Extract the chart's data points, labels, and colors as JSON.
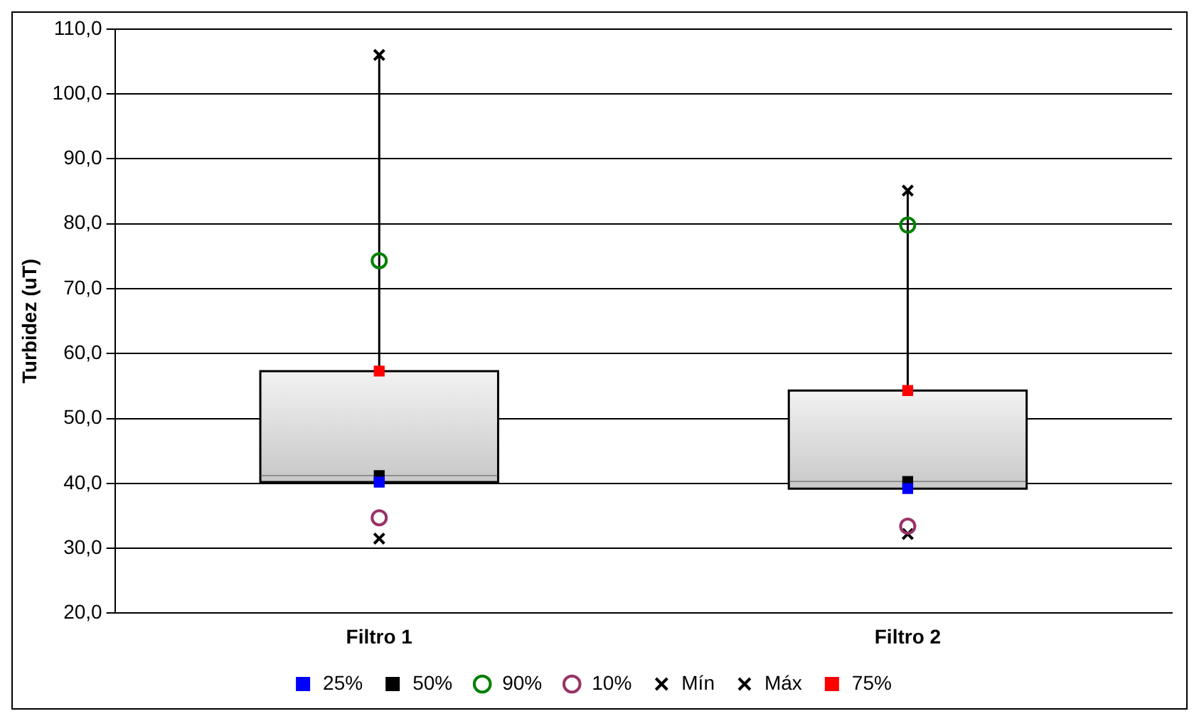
{
  "chart_data": {
    "type": "box",
    "ylabel": "Turbidez (uT)",
    "categories": [
      "Filtro 1",
      "Filtro 2"
    ],
    "boxes": [
      {
        "q1": 40.2,
        "median": 41.2,
        "q3": 57.3,
        "high": 106.0
      },
      {
        "q1": 39.2,
        "median": 40.3,
        "q3": 54.3,
        "high": 85.1
      }
    ],
    "series": [
      {
        "name": "25%",
        "type": "scatter",
        "color": "#0000ff",
        "marker": "square",
        "values": [
          40.2,
          39.2
        ]
      },
      {
        "name": "50%",
        "type": "scatter",
        "color": "#000000",
        "marker": "square",
        "values": [
          41.2,
          40.3
        ]
      },
      {
        "name": "90%",
        "type": "scatter",
        "color": "#008000",
        "marker": "circle",
        "values": [
          74.3,
          79.8
        ]
      },
      {
        "name": "10%",
        "type": "scatter",
        "color": "#993366",
        "marker": "circle",
        "values": [
          34.7,
          33.4
        ]
      },
      {
        "name": "Mín",
        "type": "scatter",
        "color": "#000000",
        "marker": "cross",
        "values": [
          31.5,
          32.2
        ]
      },
      {
        "name": "Máx",
        "type": "scatter",
        "color": "#000000",
        "marker": "cross",
        "values": [
          106.0,
          85.1
        ]
      },
      {
        "name": "75%",
        "type": "scatter",
        "color": "#ff0000",
        "marker": "square",
        "values": [
          57.3,
          54.3
        ]
      }
    ],
    "ylim": [
      20,
      110
    ],
    "yticks": [
      {
        "value": 20,
        "label": "20,0"
      },
      {
        "value": 30,
        "label": "30,0"
      },
      {
        "value": 40,
        "label": "40,0"
      },
      {
        "value": 50,
        "label": "50,0"
      },
      {
        "value": 60,
        "label": "60,0"
      },
      {
        "value": 70,
        "label": "70,0"
      },
      {
        "value": 80,
        "label": "80,0"
      },
      {
        "value": 90,
        "label": "90,0"
      },
      {
        "value": 100,
        "label": "100,0"
      },
      {
        "value": 110,
        "label": "110,0"
      }
    ],
    "grid": "y",
    "legend": "bottom"
  }
}
